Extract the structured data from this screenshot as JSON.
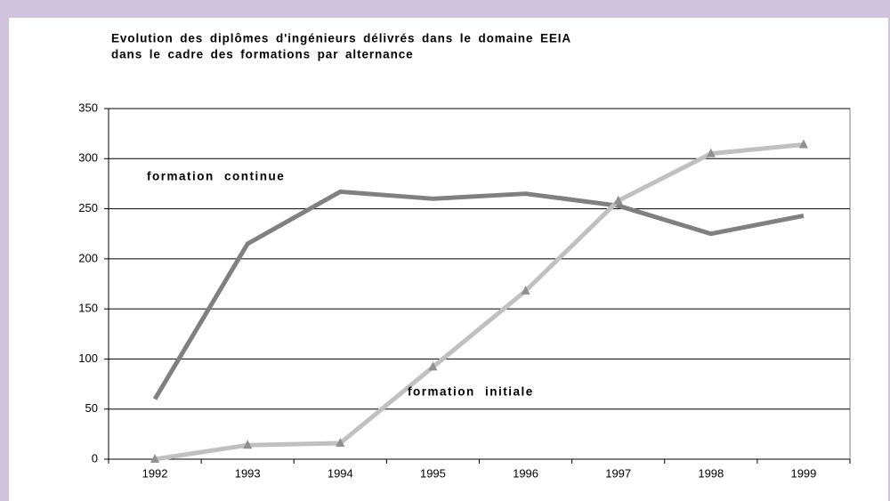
{
  "chart_data": {
    "type": "line",
    "title": [
      "Evolution des diplômes d'ingénieurs délivrés dans le domaine EEIA",
      "dans le cadre des formations par alternance"
    ],
    "categories": [
      "1992",
      "1993",
      "1994",
      "1995",
      "1996",
      "1997",
      "1998",
      "1999"
    ],
    "series": [
      {
        "name": "formation continue",
        "color": "#808080",
        "values": [
          60,
          215,
          267,
          260,
          265,
          253,
          225,
          243
        ]
      },
      {
        "name": "formation initiale",
        "color": "#c0c0c0",
        "marker": "triangle",
        "values": [
          0,
          14,
          16,
          92,
          168,
          258,
          305,
          314
        ]
      }
    ],
    "ylim": [
      0,
      350
    ],
    "yticks": [
      0,
      50,
      100,
      150,
      200,
      250,
      300,
      350
    ],
    "grid": true
  }
}
